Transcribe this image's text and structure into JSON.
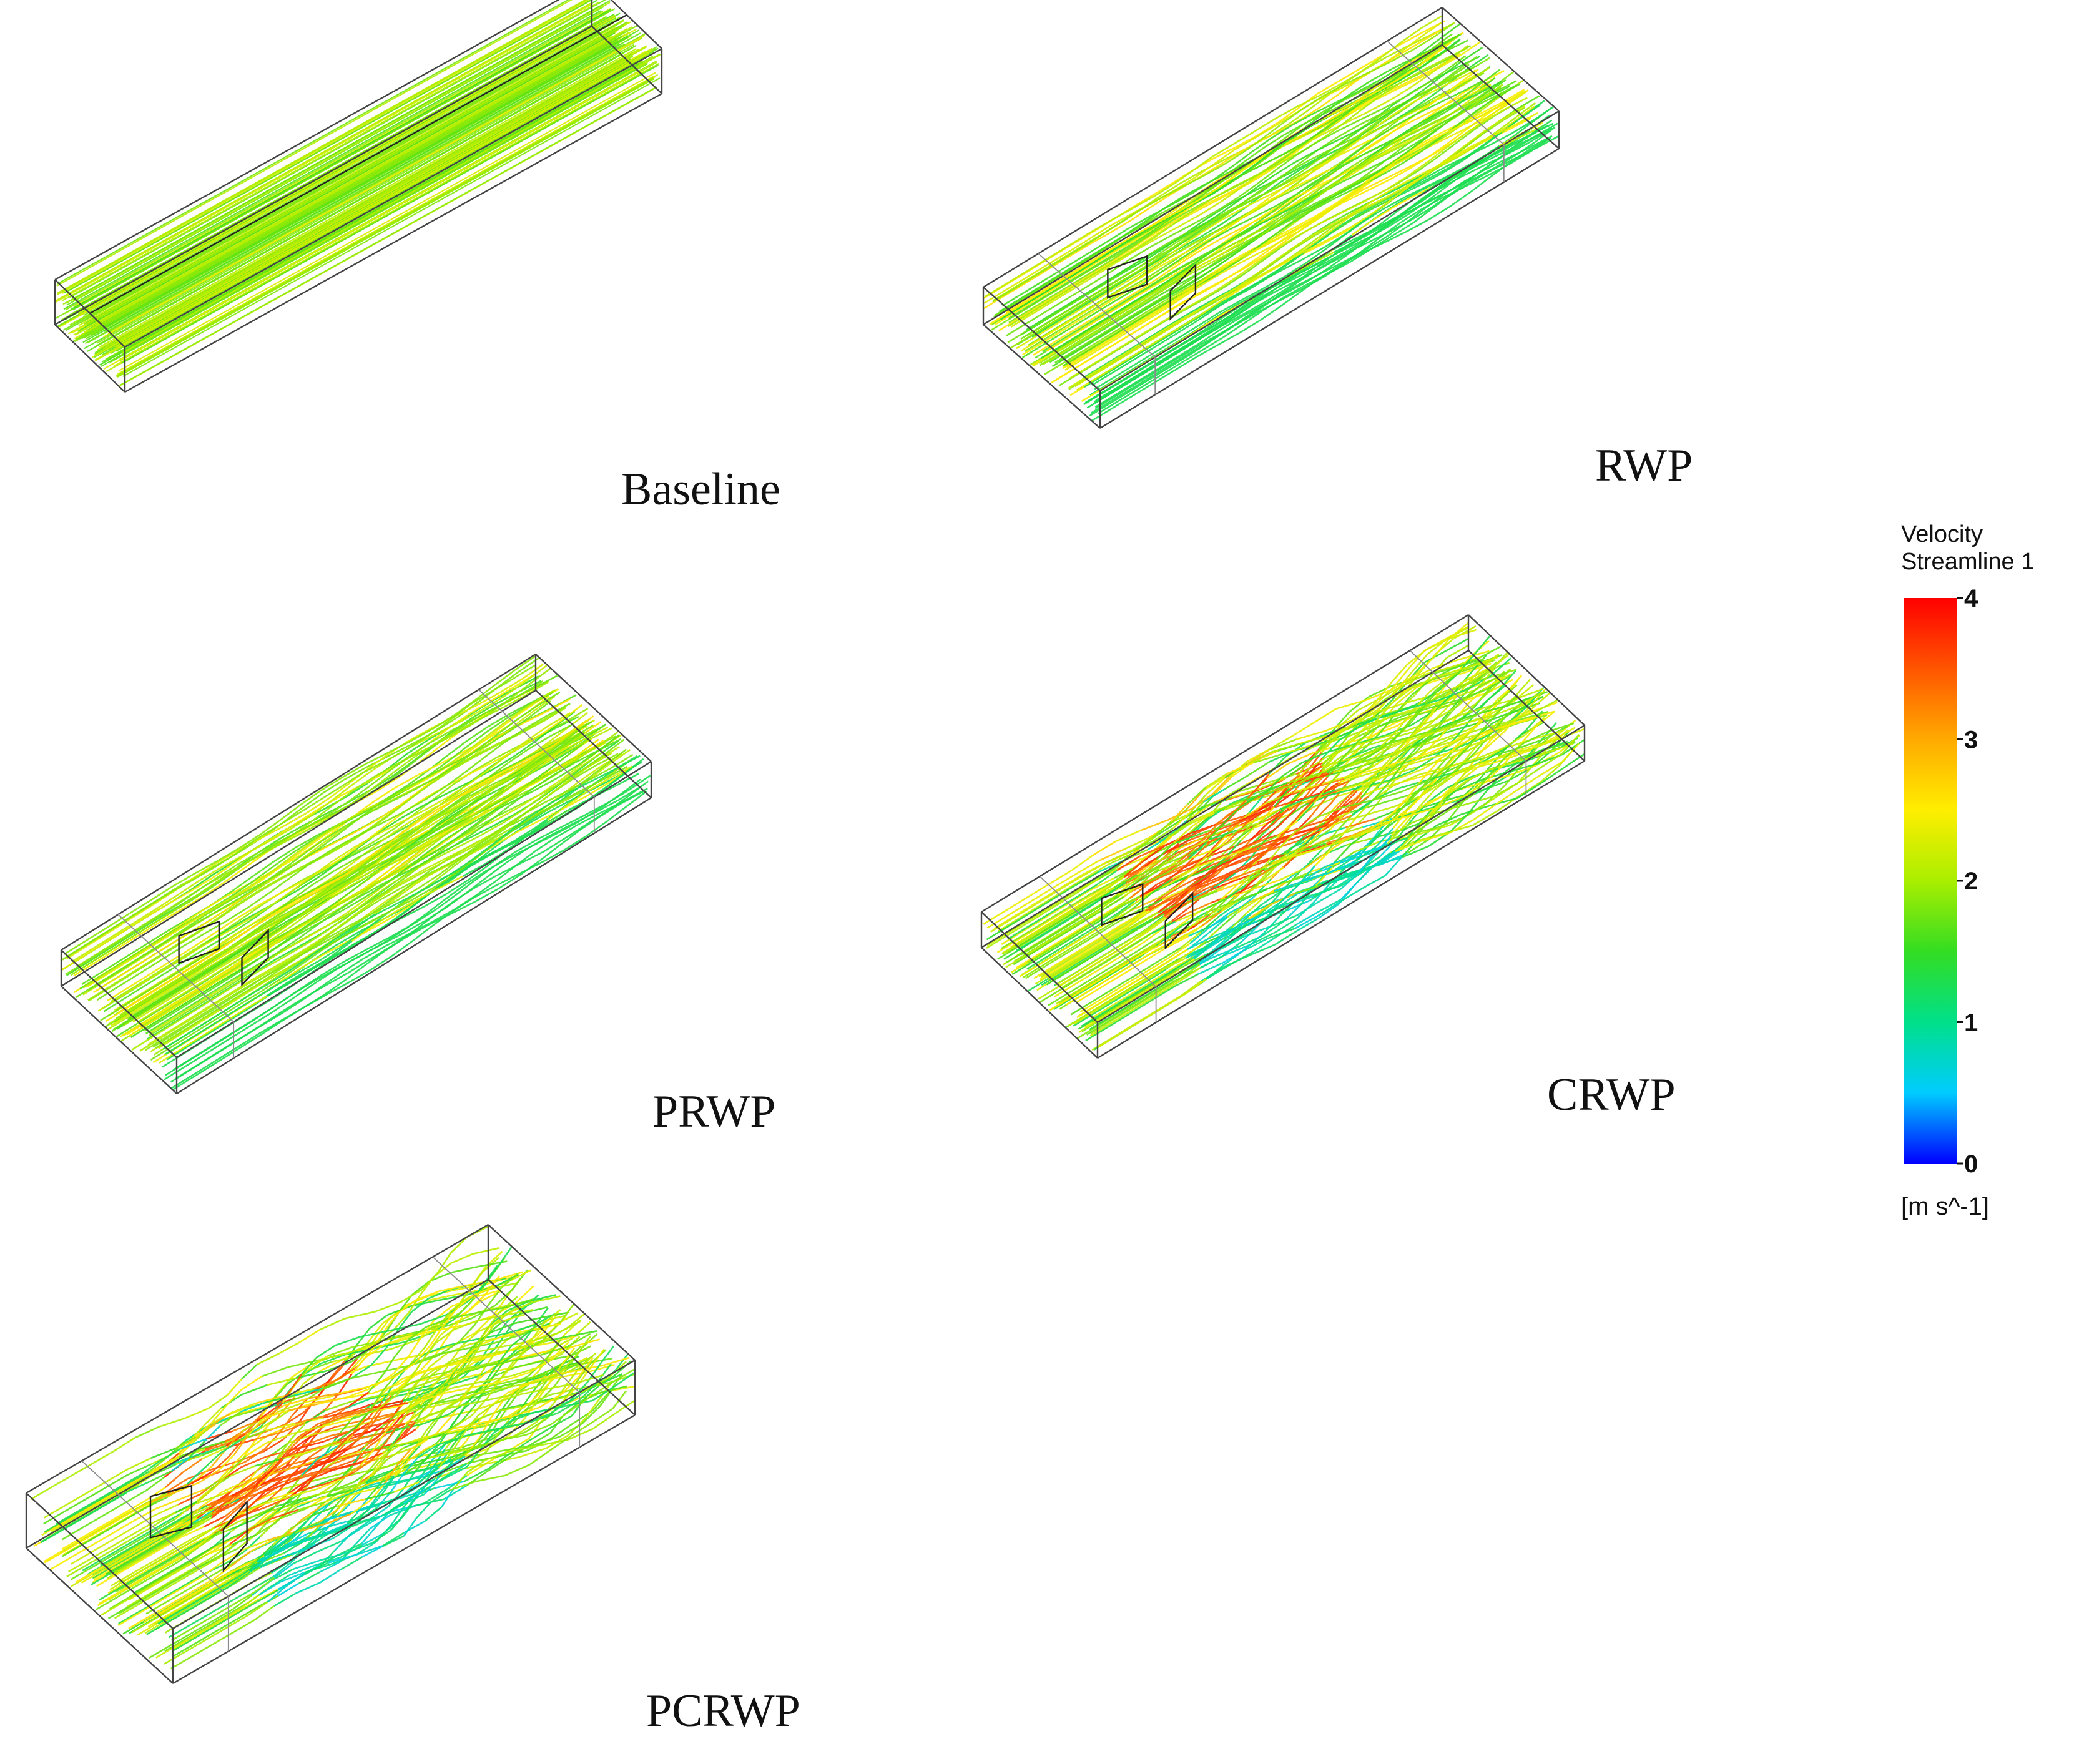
{
  "panels": [
    {
      "id": "baseline",
      "label": "Baseline",
      "pattern": "uniform",
      "has_generator": false
    },
    {
      "id": "rwp",
      "label": "RWP",
      "pattern": "mild",
      "has_generator": true
    },
    {
      "id": "prwp",
      "label": "PRWP",
      "pattern": "mild",
      "has_generator": true
    },
    {
      "id": "crwp",
      "label": "CRWP",
      "pattern": "swirl",
      "has_generator": true
    },
    {
      "id": "pcrwp",
      "label": "PCRWP",
      "pattern": "swirl",
      "has_generator": true
    }
  ],
  "legend": {
    "title_line1": "Velocity",
    "title_line2": "Streamline 1",
    "ticks": [
      "4",
      "3",
      "2",
      "1",
      "0"
    ],
    "tick_values": [
      4,
      3,
      2,
      1,
      0
    ],
    "range": [
      0,
      4
    ],
    "unit": "[m s^-1]",
    "colormap": [
      "#0000ff",
      "#00ccff",
      "#00e08a",
      "#33dd22",
      "#aaee00",
      "#ffee00",
      "#ffaa00",
      "#ff5500",
      "#ff0000"
    ]
  }
}
